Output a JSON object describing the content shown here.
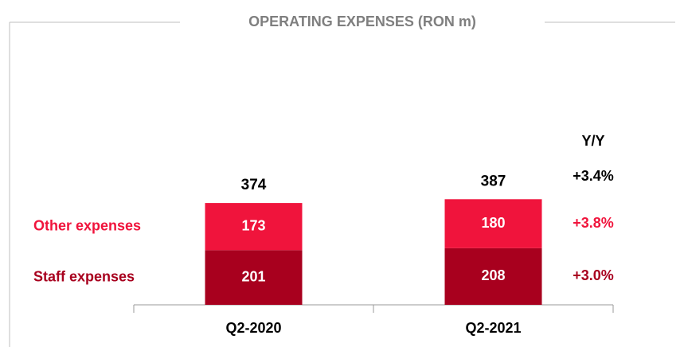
{
  "chart_data": {
    "type": "stacked_bar",
    "title": "OPERATING EXPENSES (RON m)",
    "categories": [
      "Q2-2020",
      "Q2-2021"
    ],
    "series": [
      {
        "name": "Staff expenses",
        "color": "#a8001e",
        "values": [
          201,
          208
        ],
        "yoy": "+3.0%"
      },
      {
        "name": "Other expenses",
        "color": "#f0143c",
        "values": [
          173,
          180
        ],
        "yoy": "+3.8%"
      }
    ],
    "totals": [
      374,
      387
    ],
    "yoy_header": "Y/Y",
    "yoy_total": "+3.4%"
  }
}
